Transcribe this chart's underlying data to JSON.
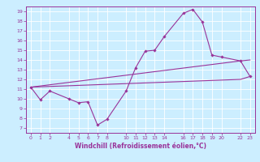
{
  "xlabel": "Windchill (Refroidissement éolien,°C)",
  "bg_color": "#cceeff",
  "grid_color": "#ffffff",
  "line_color": "#993399",
  "xlim": [
    -0.5,
    23.5
  ],
  "ylim": [
    6.5,
    19.5
  ],
  "xticks": [
    0,
    1,
    2,
    4,
    5,
    6,
    7,
    8,
    10,
    11,
    12,
    13,
    14,
    16,
    17,
    18,
    19,
    20,
    22,
    23
  ],
  "yticks": [
    7,
    8,
    9,
    10,
    11,
    12,
    13,
    14,
    15,
    16,
    17,
    18,
    19
  ],
  "line1_x": [
    0,
    1,
    2,
    4,
    5,
    6,
    7,
    8,
    10,
    11,
    12,
    13,
    14,
    16,
    17,
    18,
    19,
    20,
    22,
    23
  ],
  "line1_y": [
    11.2,
    9.9,
    10.8,
    10.0,
    9.6,
    9.7,
    7.3,
    7.9,
    10.8,
    13.2,
    14.9,
    15.0,
    16.4,
    18.8,
    19.2,
    17.9,
    14.5,
    14.3,
    13.9,
    12.3
  ],
  "line2_x": [
    0,
    22,
    23
  ],
  "line2_y": [
    11.2,
    13.9,
    14.0
  ],
  "line3_x": [
    0,
    22,
    23
  ],
  "line3_y": [
    11.2,
    12.0,
    12.3
  ],
  "font_size_ticks": 4.5,
  "font_size_xlabel": 5.5,
  "linewidth": 0.8,
  "markersize": 1.8
}
